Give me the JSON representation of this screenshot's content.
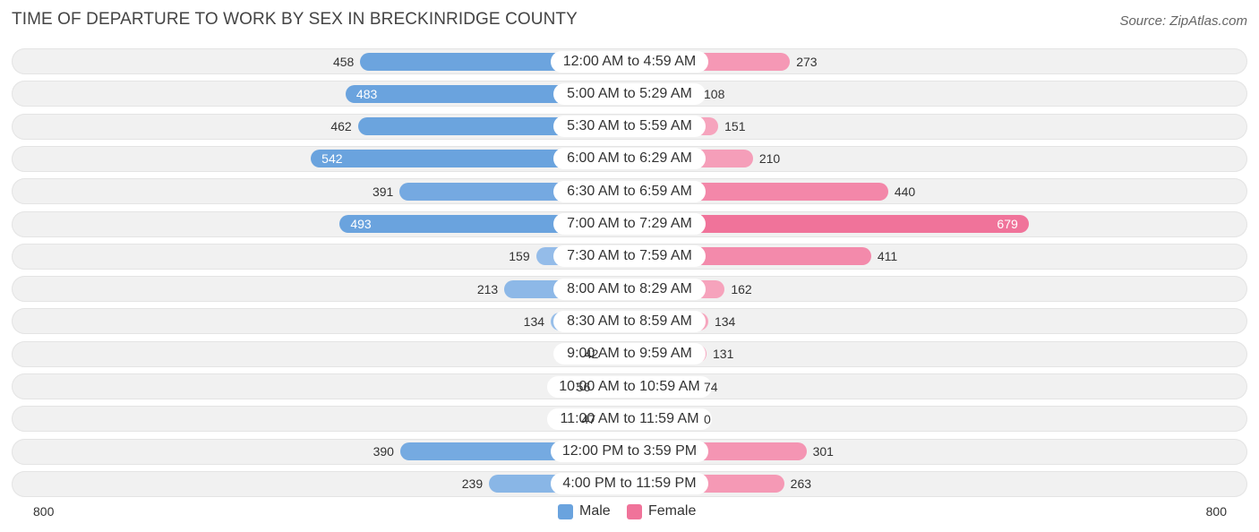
{
  "chart_data": {
    "type": "bar",
    "orientation": "horizontal-diverging",
    "title": "TIME OF DEPARTURE TO WORK BY SEX IN BRECKINRIDGE COUNTY",
    "source": "Source: ZipAtlas.com",
    "categories": [
      "12:00 AM to 4:59 AM",
      "5:00 AM to 5:29 AM",
      "5:30 AM to 5:59 AM",
      "6:00 AM to 6:29 AM",
      "6:30 AM to 6:59 AM",
      "7:00 AM to 7:29 AM",
      "7:30 AM to 7:59 AM",
      "8:00 AM to 8:29 AM",
      "8:30 AM to 8:59 AM",
      "9:00 AM to 9:59 AM",
      "10:00 AM to 10:59 AM",
      "11:00 AM to 11:59 AM",
      "12:00 PM to 3:59 PM",
      "4:00 PM to 11:59 PM"
    ],
    "series": [
      {
        "name": "Male",
        "values": [
          458,
          483,
          462,
          542,
          391,
          493,
          159,
          213,
          134,
          42,
          56,
          47,
          390,
          239
        ]
      },
      {
        "name": "Female",
        "values": [
          273,
          108,
          151,
          210,
          440,
          679,
          411,
          162,
          134,
          131,
          74,
          0,
          301,
          263
        ]
      }
    ],
    "axis_min_label": "800",
    "axis_max_label": "800",
    "xlim": [
      -800,
      800
    ],
    "legend": [
      "Male",
      "Female"
    ],
    "legend_position": "bottom-center",
    "colors": {
      "male": "#6aa3de",
      "male_light": "#a9c9ee",
      "female": "#f0739a",
      "female_light": "#f8b3c8"
    }
  }
}
